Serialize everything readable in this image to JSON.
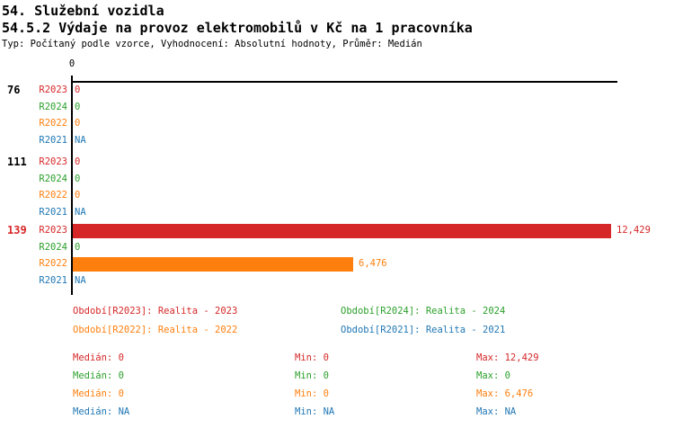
{
  "page": {
    "title_line1": "54. Služební vozidla",
    "title_line2": "54.5.2 Výdaje na provoz elektromobilů v Kč na 1 pracovníka",
    "meta_line": "Typ: Počítaný podle vzorce, Vyhodnocení: Absolutní hodnoty, Průměr: Medián"
  },
  "colors": {
    "r2023": "#d62728",
    "r2024": "#2ca02c",
    "r2022": "#ff7f0e",
    "r2021": "#1f77b4",
    "axis": "#000000",
    "group_label_default": "#000000",
    "group_label_highlight": "#d62728"
  },
  "chart_data": {
    "type": "bar",
    "orientation": "horizontal",
    "title": "54. Služební vozidla",
    "subtitle": "54.5.2 Výdaje na provoz elektromobilů v Kč na 1 pracovníka",
    "meta": "Typ: Počítaný podle vzorce, Vyhodnocení: Absolutní hodnoty, Průměr: Medián",
    "axis": {
      "tick_labels": [
        "0"
      ],
      "tick_values": [
        0
      ],
      "xmax": 12429,
      "grid": false
    },
    "categories": [
      "76",
      "111",
      "139"
    ],
    "series": [
      {
        "name": "Období[R2023]: Realita - 2023",
        "period": "R2023",
        "values": [
          0,
          0,
          12429
        ]
      },
      {
        "name": "Období[R2024]: Realita - 2024",
        "period": "R2024",
        "values": [
          0,
          0,
          0
        ]
      },
      {
        "name": "Období[R2022]: Realita - 2022",
        "period": "R2022",
        "values": [
          0,
          0,
          6476
        ]
      },
      {
        "name": "Období[R2021]: Realita - 2021",
        "period": "R2021",
        "values": [
          null,
          null,
          null
        ]
      }
    ],
    "groups": [
      {
        "label": "76",
        "highlight": false,
        "rows": [
          {
            "period": "R2023",
            "value": 0,
            "display": "0",
            "color_key": "r2023"
          },
          {
            "period": "R2024",
            "value": 0,
            "display": "0",
            "color_key": "r2024"
          },
          {
            "period": "R2022",
            "value": 0,
            "display": "0",
            "color_key": "r2022"
          },
          {
            "period": "R2021",
            "value": null,
            "display": "NA",
            "color_key": "r2021"
          }
        ]
      },
      {
        "label": "111",
        "highlight": false,
        "rows": [
          {
            "period": "R2023",
            "value": 0,
            "display": "0",
            "color_key": "r2023"
          },
          {
            "period": "R2024",
            "value": 0,
            "display": "0",
            "color_key": "r2024"
          },
          {
            "period": "R2022",
            "value": 0,
            "display": "0",
            "color_key": "r2022"
          },
          {
            "period": "R2021",
            "value": null,
            "display": "NA",
            "color_key": "r2021"
          }
        ]
      },
      {
        "label": "139",
        "highlight": true,
        "rows": [
          {
            "period": "R2023",
            "value": 12429,
            "display": "12,429",
            "color_key": "r2023"
          },
          {
            "period": "R2024",
            "value": 0,
            "display": "0",
            "color_key": "r2024"
          },
          {
            "period": "R2022",
            "value": 6476,
            "display": "6,476",
            "color_key": "r2022"
          },
          {
            "period": "R2021",
            "value": null,
            "display": "NA",
            "color_key": "r2021"
          }
        ]
      }
    ],
    "legend": [
      {
        "text": "Období[R2023]: Realita - 2023",
        "color_key": "r2023",
        "row": 0,
        "col": 0
      },
      {
        "text": "Období[R2024]: Realita - 2024",
        "color_key": "r2024",
        "row": 0,
        "col": 1
      },
      {
        "text": "Období[R2022]: Realita - 2022",
        "color_key": "r2022",
        "row": 1,
        "col": 0
      },
      {
        "text": "Období[R2021]: Realita - 2021",
        "color_key": "r2021",
        "row": 1,
        "col": 1
      }
    ],
    "stats_labels": {
      "median": "Medián",
      "min": "Min",
      "max": "Max"
    },
    "stats": [
      {
        "color_key": "r2023",
        "median": "0",
        "min": "0",
        "max": "12,429"
      },
      {
        "color_key": "r2024",
        "median": "0",
        "min": "0",
        "max": "0"
      },
      {
        "color_key": "r2022",
        "median": "0",
        "min": "0",
        "max": "6,476"
      },
      {
        "color_key": "r2021",
        "median": "NA",
        "min": "NA",
        "max": "NA"
      }
    ]
  }
}
